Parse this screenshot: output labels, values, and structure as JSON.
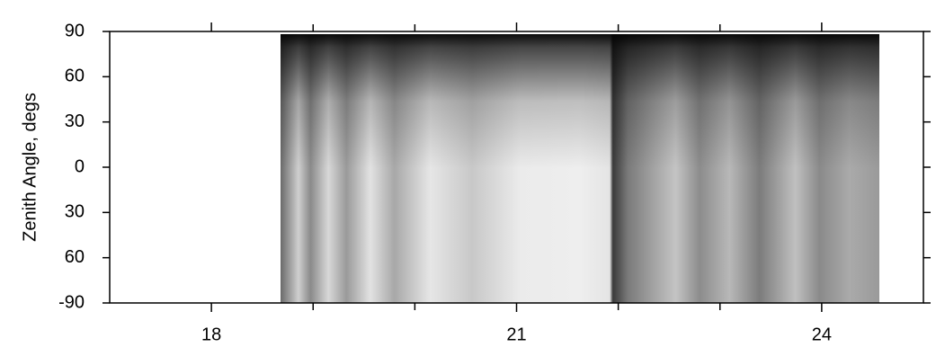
{
  "chart_data": {
    "type": "heatmap",
    "y_label": "Zenith Angle, degs",
    "xlim": [
      17,
      25
    ],
    "xticks": [
      18,
      21,
      24
    ],
    "xminorticks": [
      19,
      20,
      22,
      23
    ],
    "ylim": [
      -90,
      90
    ],
    "yticks": [
      90,
      60,
      30,
      0,
      {
        "value": -30,
        "label": "30"
      },
      {
        "value": -60,
        "label": "60"
      },
      -90
    ]
  }
}
